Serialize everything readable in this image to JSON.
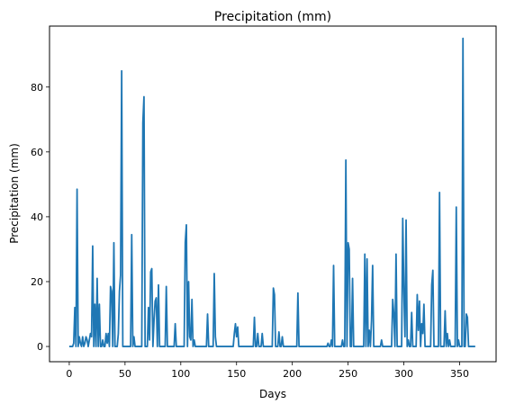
{
  "chart_data": {
    "type": "line",
    "title": "Precipitation (mm)",
    "xlabel": "Days",
    "ylabel": "Precipitation (mm)",
    "xlim": [
      -17.7,
      382.7
    ],
    "ylim": [
      -4.7,
      98.8
    ],
    "xticks": [
      0,
      50,
      100,
      150,
      200,
      250,
      300,
      350
    ],
    "yticks": [
      0,
      20,
      40,
      60,
      80
    ],
    "grid": false,
    "series": [
      {
        "color": "#1f77b4",
        "points": [
          [
            0,
            0
          ],
          [
            3,
            0
          ],
          [
            4,
            1
          ],
          [
            5,
            12
          ],
          [
            6,
            0
          ],
          [
            7,
            48.5
          ],
          [
            8,
            0
          ],
          [
            9,
            3
          ],
          [
            10,
            1
          ],
          [
            11,
            0
          ],
          [
            12,
            3
          ],
          [
            13,
            0
          ],
          [
            14,
            1
          ],
          [
            15,
            3
          ],
          [
            16,
            2
          ],
          [
            17,
            0
          ],
          [
            18,
            2
          ],
          [
            19,
            4
          ],
          [
            20,
            3
          ],
          [
            21,
            31
          ],
          [
            22,
            0
          ],
          [
            23,
            13
          ],
          [
            24,
            0
          ],
          [
            25,
            21
          ],
          [
            26,
            0
          ],
          [
            27,
            13
          ],
          [
            28,
            0
          ],
          [
            29,
            0
          ],
          [
            30,
            2
          ],
          [
            31,
            0
          ],
          [
            32,
            0
          ],
          [
            33,
            4
          ],
          [
            34,
            1
          ],
          [
            35,
            4
          ],
          [
            36,
            0
          ],
          [
            37,
            18.5
          ],
          [
            38,
            17
          ],
          [
            39,
            0
          ],
          [
            40,
            32
          ],
          [
            41,
            0
          ],
          [
            42,
            0
          ],
          [
            43,
            0
          ],
          [
            44,
            4
          ],
          [
            45,
            17
          ],
          [
            46,
            22
          ],
          [
            47,
            85
          ],
          [
            48,
            0
          ],
          [
            49,
            0
          ],
          [
            50,
            0
          ],
          [
            51,
            0
          ],
          [
            52,
            0
          ],
          [
            53,
            0
          ],
          [
            54,
            0
          ],
          [
            55,
            0
          ],
          [
            56,
            34.5
          ],
          [
            57,
            0
          ],
          [
            58,
            3
          ],
          [
            59,
            0
          ],
          [
            60,
            0
          ],
          [
            61,
            0
          ],
          [
            62,
            0
          ],
          [
            63,
            0
          ],
          [
            64,
            0
          ],
          [
            65,
            0
          ],
          [
            66,
            69
          ],
          [
            67,
            77
          ],
          [
            68,
            0
          ],
          [
            69,
            0
          ],
          [
            70,
            0
          ],
          [
            71,
            12
          ],
          [
            72,
            2
          ],
          [
            73,
            23
          ],
          [
            74,
            24
          ],
          [
            75,
            0
          ],
          [
            76,
            8
          ],
          [
            77,
            14
          ],
          [
            78,
            15
          ],
          [
            79,
            0
          ],
          [
            80,
            19
          ],
          [
            81,
            0
          ],
          [
            82,
            0
          ],
          [
            83,
            0
          ],
          [
            84,
            0
          ],
          [
            85,
            0
          ],
          [
            86,
            0
          ],
          [
            87,
            18.5
          ],
          [
            88,
            0
          ],
          [
            89,
            0
          ],
          [
            90,
            0
          ],
          [
            91,
            0
          ],
          [
            92,
            0
          ],
          [
            93,
            0
          ],
          [
            94,
            0
          ],
          [
            95,
            7
          ],
          [
            96,
            0
          ],
          [
            97,
            0
          ],
          [
            98,
            0
          ],
          [
            99,
            0
          ],
          [
            100,
            0
          ],
          [
            101,
            0
          ],
          [
            102,
            0
          ],
          [
            103,
            0
          ],
          [
            104,
            32
          ],
          [
            105,
            37.5
          ],
          [
            106,
            0
          ],
          [
            107,
            20
          ],
          [
            108,
            3
          ],
          [
            109,
            2
          ],
          [
            110,
            14.5
          ],
          [
            111,
            0
          ],
          [
            112,
            2
          ],
          [
            113,
            0
          ],
          [
            114,
            0
          ],
          [
            115,
            0
          ],
          [
            116,
            0
          ],
          [
            117,
            0
          ],
          [
            118,
            0
          ],
          [
            119,
            0
          ],
          [
            120,
            0
          ],
          [
            121,
            0
          ],
          [
            122,
            0
          ],
          [
            123,
            0
          ],
          [
            124,
            10
          ],
          [
            125,
            0
          ],
          [
            126,
            0
          ],
          [
            127,
            0
          ],
          [
            128,
            0
          ],
          [
            129,
            0
          ],
          [
            130,
            22.5
          ],
          [
            131,
            3
          ],
          [
            132,
            0
          ],
          [
            133,
            0
          ],
          [
            134,
            0
          ],
          [
            135,
            0
          ],
          [
            136,
            0
          ],
          [
            137,
            0
          ],
          [
            138,
            0
          ],
          [
            139,
            0
          ],
          [
            140,
            0
          ],
          [
            141,
            0
          ],
          [
            142,
            0
          ],
          [
            143,
            0
          ],
          [
            144,
            0
          ],
          [
            145,
            0
          ],
          [
            146,
            0
          ],
          [
            147,
            0
          ],
          [
            148,
            4
          ],
          [
            149,
            7
          ],
          [
            150,
            3
          ],
          [
            151,
            6
          ],
          [
            152,
            0
          ],
          [
            153,
            0
          ],
          [
            154,
            0
          ],
          [
            155,
            0
          ],
          [
            156,
            0
          ],
          [
            157,
            0
          ],
          [
            158,
            0
          ],
          [
            159,
            0
          ],
          [
            160,
            0
          ],
          [
            161,
            0
          ],
          [
            162,
            0
          ],
          [
            163,
            0
          ],
          [
            164,
            0
          ],
          [
            165,
            0
          ],
          [
            166,
            9
          ],
          [
            167,
            0
          ],
          [
            168,
            0
          ],
          [
            169,
            4
          ],
          [
            170,
            0
          ],
          [
            171,
            0
          ],
          [
            172,
            0
          ],
          [
            173,
            4
          ],
          [
            174,
            0
          ],
          [
            175,
            0
          ],
          [
            176,
            0
          ],
          [
            177,
            0
          ],
          [
            178,
            0
          ],
          [
            179,
            0
          ],
          [
            180,
            0
          ],
          [
            181,
            0
          ],
          [
            182,
            0
          ],
          [
            183,
            18
          ],
          [
            184,
            16
          ],
          [
            185,
            0
          ],
          [
            186,
            0
          ],
          [
            187,
            0
          ],
          [
            188,
            4.5
          ],
          [
            189,
            0
          ],
          [
            190,
            0
          ],
          [
            191,
            3
          ],
          [
            192,
            0
          ],
          [
            193,
            0
          ],
          [
            194,
            0
          ],
          [
            195,
            0
          ],
          [
            196,
            0
          ],
          [
            197,
            0
          ],
          [
            198,
            0
          ],
          [
            199,
            0
          ],
          [
            200,
            0
          ],
          [
            201,
            0
          ],
          [
            202,
            0
          ],
          [
            203,
            0
          ],
          [
            204,
            0
          ],
          [
            205,
            16.5
          ],
          [
            206,
            0
          ],
          [
            207,
            0
          ],
          [
            208,
            0
          ],
          [
            209,
            0
          ],
          [
            210,
            0
          ],
          [
            215,
            0
          ],
          [
            220,
            0
          ],
          [
            225,
            0
          ],
          [
            230,
            0
          ],
          [
            231,
            0
          ],
          [
            232,
            1
          ],
          [
            233,
            0
          ],
          [
            234,
            0
          ],
          [
            235,
            2
          ],
          [
            236,
            0
          ],
          [
            237,
            25
          ],
          [
            238,
            0
          ],
          [
            239,
            0
          ],
          [
            240,
            0
          ],
          [
            241,
            0
          ],
          [
            242,
            0
          ],
          [
            243,
            0
          ],
          [
            244,
            0
          ],
          [
            245,
            2
          ],
          [
            246,
            0
          ],
          [
            247,
            0
          ],
          [
            248,
            57.5
          ],
          [
            249,
            0
          ],
          [
            250,
            32
          ],
          [
            251,
            30
          ],
          [
            252,
            0
          ],
          [
            253,
            0
          ],
          [
            254,
            21
          ],
          [
            255,
            0
          ],
          [
            256,
            0
          ],
          [
            257,
            0
          ],
          [
            258,
            0
          ],
          [
            259,
            0
          ],
          [
            260,
            0
          ],
          [
            261,
            0
          ],
          [
            262,
            0
          ],
          [
            263,
            0
          ],
          [
            264,
            0
          ],
          [
            265,
            28.5
          ],
          [
            266,
            0
          ],
          [
            267,
            27
          ],
          [
            268,
            0
          ],
          [
            269,
            5
          ],
          [
            270,
            0
          ],
          [
            271,
            8
          ],
          [
            272,
            25
          ],
          [
            273,
            0
          ],
          [
            274,
            0
          ],
          [
            275,
            0
          ],
          [
            276,
            0
          ],
          [
            277,
            0
          ],
          [
            278,
            0
          ],
          [
            279,
            0
          ],
          [
            280,
            2
          ],
          [
            281,
            0
          ],
          [
            282,
            0
          ],
          [
            283,
            0
          ],
          [
            284,
            0
          ],
          [
            285,
            0
          ],
          [
            286,
            0
          ],
          [
            287,
            0
          ],
          [
            288,
            0
          ],
          [
            289,
            0
          ],
          [
            290,
            14.5
          ],
          [
            291,
            10
          ],
          [
            292,
            0
          ],
          [
            293,
            28.5
          ],
          [
            294,
            0
          ],
          [
            295,
            0
          ],
          [
            296,
            0
          ],
          [
            297,
            0
          ],
          [
            298,
            0
          ],
          [
            299,
            39.5
          ],
          [
            300,
            17
          ],
          [
            301,
            3
          ],
          [
            302,
            39
          ],
          [
            303,
            0
          ],
          [
            304,
            2
          ],
          [
            305,
            0
          ],
          [
            306,
            0
          ],
          [
            307,
            10.5
          ],
          [
            308,
            0
          ],
          [
            309,
            0
          ],
          [
            310,
            0
          ],
          [
            311,
            0
          ],
          [
            312,
            16
          ],
          [
            313,
            5
          ],
          [
            314,
            14
          ],
          [
            315,
            0
          ],
          [
            316,
            7
          ],
          [
            317,
            4
          ],
          [
            318,
            13
          ],
          [
            319,
            0
          ],
          [
            320,
            0
          ],
          [
            321,
            0
          ],
          [
            322,
            0
          ],
          [
            323,
            0
          ],
          [
            324,
            0
          ],
          [
            325,
            19
          ],
          [
            326,
            23.5
          ],
          [
            327,
            0
          ],
          [
            328,
            0
          ],
          [
            329,
            0
          ],
          [
            330,
            0
          ],
          [
            331,
            0
          ],
          [
            332,
            47.5
          ],
          [
            333,
            0
          ],
          [
            334,
            0
          ],
          [
            335,
            0
          ],
          [
            336,
            0
          ],
          [
            337,
            11
          ],
          [
            338,
            0
          ],
          [
            339,
            4
          ],
          [
            340,
            0
          ],
          [
            341,
            2
          ],
          [
            342,
            0
          ],
          [
            343,
            0
          ],
          [
            344,
            0
          ],
          [
            345,
            0
          ],
          [
            346,
            0
          ],
          [
            347,
            43
          ],
          [
            348,
            0
          ],
          [
            349,
            2
          ],
          [
            350,
            0
          ],
          [
            351,
            0
          ],
          [
            352,
            0
          ],
          [
            353,
            95
          ],
          [
            354,
            0
          ],
          [
            355,
            0
          ],
          [
            356,
            10
          ],
          [
            357,
            9
          ],
          [
            358,
            0
          ],
          [
            359,
            0
          ],
          [
            360,
            0
          ],
          [
            361,
            0
          ],
          [
            362,
            0
          ],
          [
            363,
            0
          ],
          [
            364,
            0
          ]
        ]
      }
    ]
  }
}
